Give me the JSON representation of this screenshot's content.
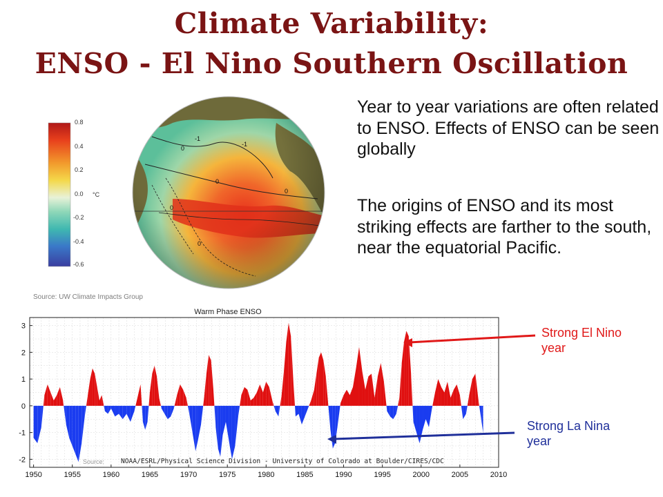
{
  "page": {
    "title_line1": "Climate Variability:",
    "title_line2": "ENSO - El Nino Southern Oscillation",
    "para1": "Year to year variations are often related to ENSO. Effects of ENSO can be seen globally",
    "para2": "The origins of ENSO and its most striking effects are farther to the south, near the equatorial Pacific.",
    "map_source": "Source:  UW Climate Impacts Group",
    "colorbar": {
      "ticks": [
        "0.8",
        "0.4",
        "0.2",
        "0.0",
        "-0.2",
        "-0.4",
        "-0.6"
      ],
      "unit": "°C"
    },
    "globe_contour_labels": [
      "-1",
      "-1",
      "0",
      "0",
      "0",
      "0",
      "0"
    ],
    "annotations": {
      "el_nino": "Strong El Nino\nyear",
      "la_nina": "Strong La Nina\nyear",
      "el_nino_color": "#e01818",
      "la_nina_color": "#1f2f9a"
    }
  },
  "chart_data": {
    "type": "area",
    "title": "Warm Phase ENSO",
    "xlabel": "",
    "ylabel": "",
    "source_prefix": "Source:",
    "source_text": "NOAA/ESRL/Physical Science Division - University of Colorado at Boulder/CIRES/CDC",
    "xlim": [
      1949.5,
      2010
    ],
    "ylim": [
      -2.3,
      3.3
    ],
    "xticks": [
      1950,
      1955,
      1960,
      1965,
      1970,
      1975,
      1980,
      1985,
      1990,
      1995,
      2000,
      2005,
      2010
    ],
    "yticks": [
      3,
      2,
      1,
      0,
      -1,
      -2
    ],
    "grid": true,
    "positive_color": "#e01010",
    "negative_color": "#1a3cf0",
    "series": [
      {
        "x": [
          1950,
          1950.5,
          1951,
          1951.4,
          1951.8,
          1952.2,
          1952.6,
          1953,
          1953.4,
          1953.8,
          1954.2,
          1954.6,
          1955,
          1955.4,
          1955.8,
          1956.2,
          1956.6,
          1957,
          1957.3,
          1957.6,
          1957.9,
          1958.2,
          1958.5,
          1958.8,
          1959.2,
          1959.6,
          1960,
          1960.5,
          1961,
          1961.5,
          1962,
          1962.5,
          1963,
          1963.4,
          1963.8,
          1964.1,
          1964.4,
          1964.7,
          1965,
          1965.3,
          1965.6,
          1965.9,
          1966.2,
          1966.5,
          1966.9,
          1967.3,
          1967.7,
          1968.1,
          1968.5,
          1968.9,
          1969.3,
          1969.7,
          1970.1,
          1970.5,
          1970.9,
          1971.2,
          1971.6,
          1972,
          1972.3,
          1972.6,
          1972.9,
          1973.2,
          1973.5,
          1973.8,
          1974.1,
          1974.4,
          1974.8,
          1975.2,
          1975.6,
          1976,
          1976.4,
          1976.8,
          1977.2,
          1977.6,
          1978,
          1978.4,
          1978.8,
          1979.2,
          1979.6,
          1980,
          1980.4,
          1980.8,
          1981.2,
          1981.6,
          1982,
          1982.3,
          1982.6,
          1982.9,
          1983.2,
          1983.5,
          1983.8,
          1984.2,
          1984.6,
          1985,
          1985.4,
          1985.8,
          1986.2,
          1986.5,
          1986.8,
          1987.1,
          1987.4,
          1987.7,
          1988,
          1988.3,
          1988.6,
          1988.9,
          1989.2,
          1989.6,
          1990,
          1990.4,
          1990.8,
          1991.2,
          1991.6,
          1992,
          1992.4,
          1992.8,
          1993.2,
          1993.6,
          1994,
          1994.4,
          1994.8,
          1995.2,
          1995.6,
          1996,
          1996.4,
          1996.8,
          1997.2,
          1997.5,
          1997.8,
          1998.1,
          1998.4,
          1998.7,
          1999,
          1999.4,
          1999.8,
          2000.2,
          2000.6,
          2001,
          2001.4,
          2001.8,
          2002.2,
          2002.6,
          2003,
          2003.4,
          2003.8,
          2004.2,
          2004.6,
          2005,
          2005.4,
          2005.8,
          2006.2,
          2006.6,
          2007,
          2007.4,
          2007.8,
          2008
        ],
        "y": [
          -1.2,
          -1.4,
          -0.8,
          0.4,
          0.8,
          0.5,
          0.2,
          0.4,
          0.7,
          0.2,
          -0.7,
          -1.2,
          -1.5,
          -1.8,
          -2.1,
          -1.4,
          -0.4,
          0.4,
          1.0,
          1.4,
          1.2,
          0.7,
          0.2,
          0.4,
          -0.2,
          -0.3,
          -0.1,
          -0.4,
          -0.3,
          -0.5,
          -0.3,
          -0.6,
          -0.2,
          0.3,
          0.8,
          -0.6,
          -0.9,
          -0.6,
          0.5,
          1.2,
          1.5,
          1.1,
          0.3,
          -0.1,
          -0.3,
          -0.5,
          -0.4,
          -0.1,
          0.4,
          0.8,
          0.6,
          0.3,
          -0.3,
          -1.0,
          -1.7,
          -1.3,
          -0.7,
          0.3,
          1.2,
          1.9,
          1.7,
          0.6,
          -0.8,
          -1.6,
          -1.9,
          -1.1,
          -0.6,
          -1.3,
          -2.0,
          -1.5,
          -0.4,
          0.4,
          0.7,
          0.6,
          0.2,
          0.3,
          0.5,
          0.8,
          0.5,
          0.9,
          0.7,
          0.2,
          -0.2,
          -0.4,
          0.4,
          1.3,
          2.4,
          3.1,
          2.6,
          1.0,
          -0.4,
          -0.3,
          -0.7,
          -0.4,
          -0.1,
          0.2,
          0.6,
          1.2,
          1.8,
          2.0,
          1.7,
          1.1,
          0.1,
          -0.9,
          -1.6,
          -1.4,
          -0.8,
          0.1,
          0.4,
          0.6,
          0.4,
          0.7,
          1.4,
          2.2,
          1.3,
          0.6,
          1.1,
          1.2,
          0.3,
          1.1,
          1.6,
          0.9,
          -0.2,
          -0.4,
          -0.5,
          -0.3,
          0.3,
          1.6,
          2.4,
          2.8,
          2.6,
          1.2,
          -0.6,
          -1.0,
          -1.4,
          -0.9,
          -0.5,
          -0.8,
          -0.1,
          0.5,
          1.0,
          0.7,
          0.5,
          0.9,
          0.3,
          0.6,
          0.8,
          0.4,
          -0.5,
          -0.3,
          0.4,
          1.0,
          1.2,
          0.2,
          -0.6,
          -1.0
        ]
      }
    ]
  }
}
